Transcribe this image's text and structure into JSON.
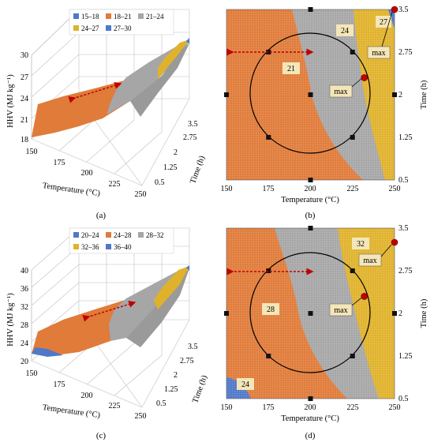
{
  "colors": {
    "c15_18": "#4f78c8",
    "c18_21": "#e07b39",
    "c21_24": "#a6a6a6",
    "c24_27": "#e0b22b",
    "c27_30": "#4f78c8",
    "c20_24": "#4f78c8",
    "c24_28": "#e07b39",
    "c28_32": "#a6a6a6",
    "c32_36": "#e0b22b",
    "c36_40": "#4f78c8",
    "arrow": "#c00000",
    "marker": "#c00000"
  },
  "chart_data": [
    {
      "panel": "(a)",
      "type": "surface-3d",
      "zlabel": "HHV (MJ kg⁻¹)",
      "xlabel": "Temperature (°C)",
      "ylabel": "Time (h)",
      "x_ticks": [
        "150",
        "175",
        "200",
        "225",
        "250"
      ],
      "y_ticks": [
        "0.5",
        "1.25",
        "2",
        "2.75",
        "3.5"
      ],
      "z_ticks": [
        "18",
        "21",
        "24",
        "27",
        "30"
      ],
      "xlim": [
        150,
        250
      ],
      "ylim": [
        0.5,
        3.5
      ],
      "zlim": [
        18,
        30
      ],
      "legend": [
        "15–18",
        "18–21",
        "21–24",
        "24–27",
        "27–30"
      ]
    },
    {
      "panel": "(b)",
      "type": "contour",
      "xlabel": "Temperature (°C)",
      "ylabel": "Time (h)",
      "x_ticks": [
        "150",
        "175",
        "200",
        "225",
        "250"
      ],
      "y_ticks": [
        "0.5",
        "1.25",
        "2",
        "2.75",
        "3.5"
      ],
      "xlim": [
        150,
        250
      ],
      "ylim": [
        0.5,
        3.5
      ],
      "contour_labels": [
        "21",
        "24",
        "27"
      ],
      "annotations": [
        "max",
        "max"
      ],
      "max_points": [
        {
          "x": 232,
          "y": 2.3
        },
        {
          "x": 250,
          "y": 3.5
        }
      ],
      "design_points": [
        [
          175,
          2.75
        ],
        [
          225,
          2.75
        ],
        [
          175,
          1.25
        ],
        [
          225,
          1.25
        ],
        [
          200,
          2
        ],
        [
          150,
          2
        ],
        [
          250,
          2
        ],
        [
          200,
          0.5
        ],
        [
          200,
          3.5
        ]
      ]
    },
    {
      "panel": "(c)",
      "type": "surface-3d",
      "zlabel": "HHV (MJ kg⁻¹)",
      "xlabel": "Temperature (°C)",
      "ylabel": "Time (h)",
      "x_ticks": [
        "150",
        "175",
        "200",
        "225",
        "250"
      ],
      "y_ticks": [
        "0.5",
        "1.25",
        "2",
        "2.75",
        "3.5"
      ],
      "z_ticks": [
        "20",
        "24",
        "28",
        "32",
        "36",
        "40"
      ],
      "xlim": [
        150,
        250
      ],
      "ylim": [
        0.5,
        3.5
      ],
      "zlim": [
        20,
        40
      ],
      "legend": [
        "20–24",
        "24–28",
        "28–32",
        "32–36",
        "36–40"
      ]
    },
    {
      "panel": "(d)",
      "type": "contour",
      "xlabel": "Temperature (°C)",
      "ylabel": "Time (h)",
      "x_ticks": [
        "150",
        "175",
        "200",
        "225",
        "250"
      ],
      "y_ticks": [
        "0.5",
        "1.25",
        "2",
        "2.75",
        "3.5"
      ],
      "xlim": [
        150,
        250
      ],
      "ylim": [
        0.5,
        3.5
      ],
      "contour_labels": [
        "24",
        "28",
        "32"
      ],
      "annotations": [
        "max",
        "max"
      ],
      "max_points": [
        {
          "x": 232,
          "y": 2.3
        },
        {
          "x": 250,
          "y": 3.25
        }
      ],
      "design_points": [
        [
          175,
          2.75
        ],
        [
          225,
          2.75
        ],
        [
          175,
          1.25
        ],
        [
          225,
          1.25
        ],
        [
          200,
          2
        ],
        [
          150,
          2
        ],
        [
          250,
          2
        ],
        [
          200,
          0.5
        ],
        [
          200,
          3.5
        ]
      ]
    }
  ]
}
